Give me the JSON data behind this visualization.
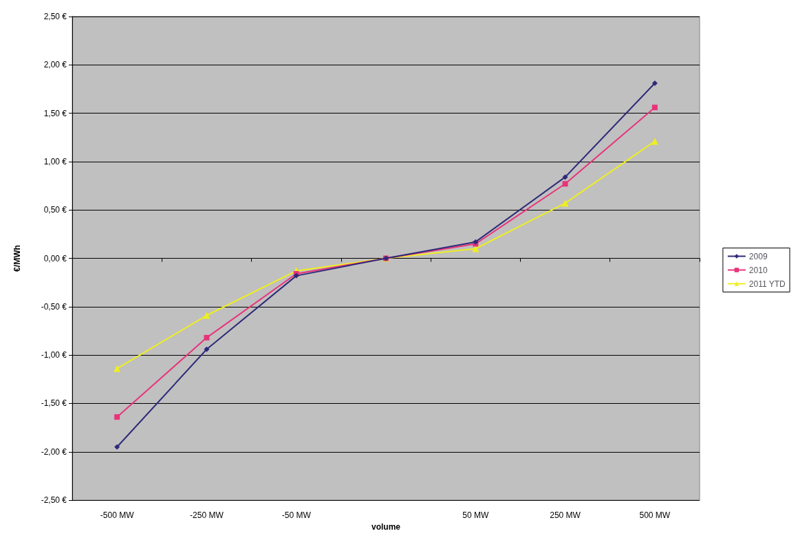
{
  "chart_data": {
    "type": "line",
    "xlabel": "volume",
    "ylabel": "€/MWh",
    "categories": [
      "-500 MW",
      "-250 MW",
      "-50 MW",
      null,
      "50 MW",
      "250 MW",
      "500 MW"
    ],
    "series": [
      {
        "name": "2009",
        "color": "#2e2a78",
        "marker": "diamond",
        "values": [
          -1.95,
          -0.94,
          -0.18,
          0,
          0.17,
          0.84,
          1.81
        ]
      },
      {
        "name": "2010",
        "color": "#e8337a",
        "marker": "square",
        "values": [
          -1.64,
          -0.82,
          -0.16,
          0,
          0.15,
          0.77,
          1.56
        ]
      },
      {
        "name": "2011 YTD",
        "color": "#eeee22",
        "marker": "triangle",
        "values": [
          -1.14,
          -0.59,
          -0.13,
          0,
          0.1,
          0.57,
          1.21
        ]
      }
    ],
    "ylim": [
      -2.5,
      2.5
    ],
    "yticks": [
      {
        "value": -2.5,
        "label": "-2,50 €"
      },
      {
        "value": -2,
        "label": "-2,00 €"
      },
      {
        "value": -1.5,
        "label": "-1,50 €"
      },
      {
        "value": -1,
        "label": "-1,00 €"
      },
      {
        "value": -0.5,
        "label": "-0,50 €"
      },
      {
        "value": 0,
        "label": "0,00 €"
      },
      {
        "value": 0.5,
        "label": "0,50 €"
      },
      {
        "value": 1,
        "label": "1,00 €"
      },
      {
        "value": 1.5,
        "label": "1,50 €"
      },
      {
        "value": 2,
        "label": "2,00 €"
      },
      {
        "value": 2.5,
        "label": "2,50 €"
      }
    ],
    "grid": "y",
    "legend": "right",
    "line_style": "solid"
  }
}
